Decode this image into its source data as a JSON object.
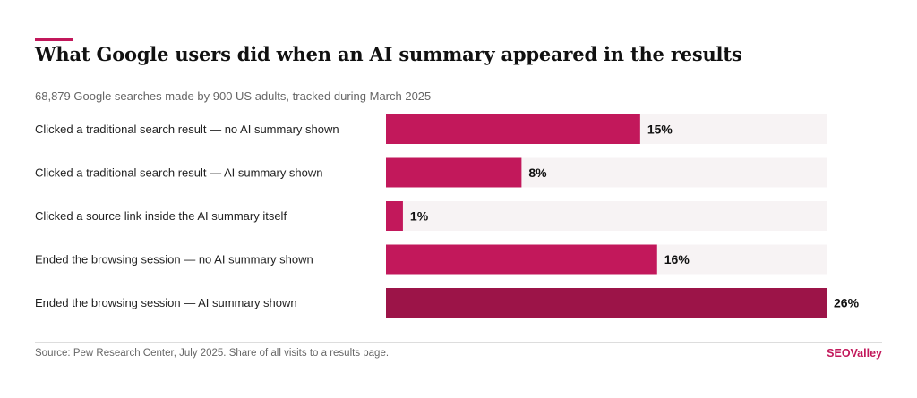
{
  "chart_data": {
    "type": "bar",
    "orientation": "horizontal",
    "title": "What Google users did when an AI summary appeared in the results",
    "subtitle": "68,879 Google searches made by 900 US adults, tracked during March 2025",
    "categories": [
      "Clicked a traditional search result — no AI summary shown",
      "Clicked a traditional search result — AI summary shown",
      "Clicked a source link inside the AI summary itself",
      "Ended the browsing session — no AI summary shown",
      "Ended the browsing session — AI summary shown"
    ],
    "values": [
      15,
      8,
      1,
      16,
      26
    ],
    "value_labels": [
      "15%",
      "8%",
      "1%",
      "16%",
      "26%"
    ],
    "xlim": [
      0,
      26
    ],
    "unit": "%",
    "grid": false,
    "legend": "none",
    "highlight_index": 4
  },
  "colors": {
    "accent": "#c2185b",
    "bar": "#c2185b",
    "bar_highlight": "#9c1448",
    "track": "#f7f3f4",
    "brand": "#c2185b"
  },
  "footer": {
    "source": "Source: Pew Research Center, July 2025. Share of all visits to a results page.",
    "brand": "SEOValley"
  }
}
